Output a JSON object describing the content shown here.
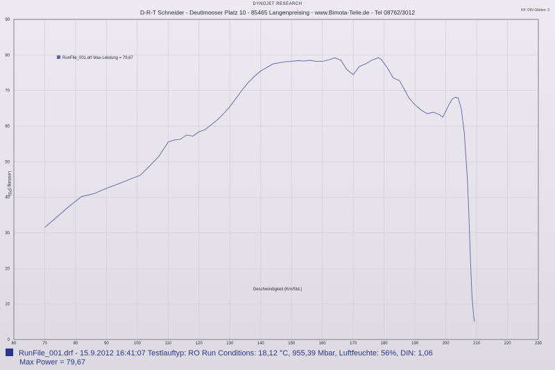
{
  "header": {
    "research": "DYNOJET RESEARCH",
    "address": "D-R-T Schneider - Deutlmooser Platz 10 - 85465 Langenpreising - www.Bimota-Teile.de - Tel 08762/3012",
    "corner": "KF: DIN  Glätten: 3"
  },
  "footer": {
    "run_info": "RunFile_001.drf - 15.9.2012 16:41:07  Testlauftyp: RO  Run Conditions: 18,12 °C, 955,39 Mbar,  Luftfeuchte: 56%, DIN: 1,06",
    "max_power": "Max Power = 79,67"
  },
  "chart_data": {
    "type": "line",
    "title": "",
    "xlabel": "Geschwindigkeit (Km/Std.)",
    "ylabel": "Leistung (PS)",
    "xlim": [
      60,
      230
    ],
    "ylim": [
      0,
      90
    ],
    "x_ticks": [
      60,
      70,
      80,
      90,
      100,
      110,
      120,
      130,
      140,
      150,
      160,
      170,
      180,
      190,
      200,
      210,
      220,
      230
    ],
    "y_ticks": [
      0,
      10,
      20,
      30,
      40,
      50,
      60,
      70,
      80,
      90
    ],
    "grid": true,
    "legend_position": "top-left",
    "colors": {
      "line": "#5a60b0",
      "grid": "#cfcdd6",
      "border": "#6a6a7a"
    },
    "series": [
      {
        "name": "RunFile_001.drf Max Leistung = 79,67",
        "x": [
          70,
          74,
          78,
          82,
          86,
          90,
          94,
          98,
          101,
          104,
          107,
          110,
          112,
          114,
          116,
          118,
          120,
          122,
          124,
          126,
          128,
          130,
          132,
          134,
          136,
          138,
          140,
          142,
          144,
          146,
          148,
          150,
          152,
          154,
          156,
          158,
          160,
          162,
          164,
          166,
          168,
          170,
          172,
          174,
          176,
          178,
          179,
          181,
          183,
          185,
          188,
          190,
          192,
          194,
          196,
          198,
          199,
          200,
          201,
          202,
          203,
          204,
          205,
          206,
          207,
          207.5,
          208,
          208.5,
          209,
          209.3
        ],
        "y": [
          31.5,
          34.5,
          37.5,
          40.2,
          41,
          42.5,
          43.8,
          45.2,
          46.2,
          48.8,
          51.5,
          55.5,
          56.1,
          56.3,
          57.5,
          57.2,
          58.4,
          59,
          60.4,
          61.8,
          63.5,
          65.5,
          67.8,
          70.2,
          72.3,
          74,
          75.5,
          76.5,
          77.5,
          77.8,
          78.1,
          78.2,
          78.4,
          78.3,
          78.5,
          78.2,
          78.2,
          78.6,
          79.2,
          78.5,
          75.8,
          74.5,
          76.8,
          77.5,
          78.5,
          79.2,
          78.8,
          76.5,
          73.5,
          72.8,
          68,
          66,
          64.5,
          63.5,
          63.9,
          63.2,
          62.5,
          64.2,
          66,
          67.5,
          68.1,
          67.9,
          65,
          58,
          45,
          35,
          22,
          12,
          7,
          5
        ]
      }
    ]
  }
}
